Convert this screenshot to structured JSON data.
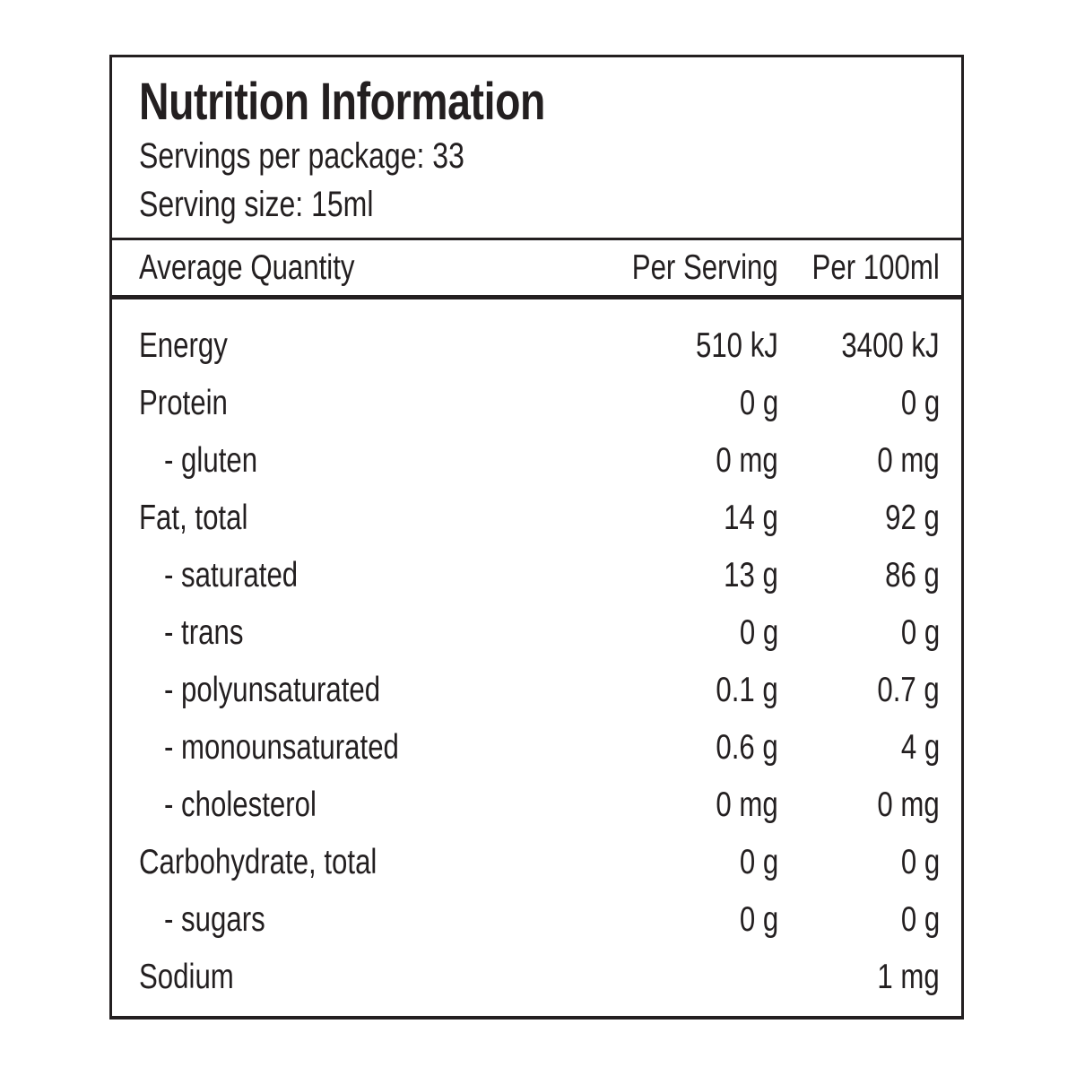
{
  "label": {
    "title": "Nutrition Information",
    "servings_per_package": "Servings per package: 33",
    "serving_size": "Serving size: 15ml",
    "columns": {
      "label": "Average Quantity",
      "per_serving": "Per Serving",
      "per_100ml": "Per 100ml"
    },
    "rows": [
      {
        "label": "Energy",
        "per_serving": "510 kJ",
        "per_100ml": "3400 kJ"
      },
      {
        "label": "Protein",
        "per_serving": "0 g",
        "per_100ml": "0 g"
      },
      {
        "label": "- gluten",
        "per_serving": "0 mg",
        "per_100ml": "0 mg"
      },
      {
        "label": "Fat, total",
        "per_serving": "14 g",
        "per_100ml": "92 g"
      },
      {
        "label": "- saturated",
        "per_serving": "13 g",
        "per_100ml": "86 g"
      },
      {
        "label": "- trans",
        "per_serving": "0 g",
        "per_100ml": "0 g"
      },
      {
        "label": "- polyunsaturated",
        "per_serving": "0.1 g",
        "per_100ml": "0.7 g"
      },
      {
        "label": "- monounsaturated",
        "per_serving": "0.6 g",
        "per_100ml": "4 g"
      },
      {
        "label": "- cholesterol",
        "per_serving": "0 mg",
        "per_100ml": "0 mg"
      },
      {
        "label": "Carbohydrate, total",
        "per_serving": "0 g",
        "per_100ml": "0 g"
      },
      {
        "label": "- sugars",
        "per_serving": "0 g",
        "per_100ml": "0 g"
      },
      {
        "label": "Sodium",
        "per_serving": "",
        "per_100ml": "1 mg"
      }
    ],
    "colors": {
      "text": "#231f20",
      "border": "#231f20",
      "background": "#ffffff"
    }
  }
}
